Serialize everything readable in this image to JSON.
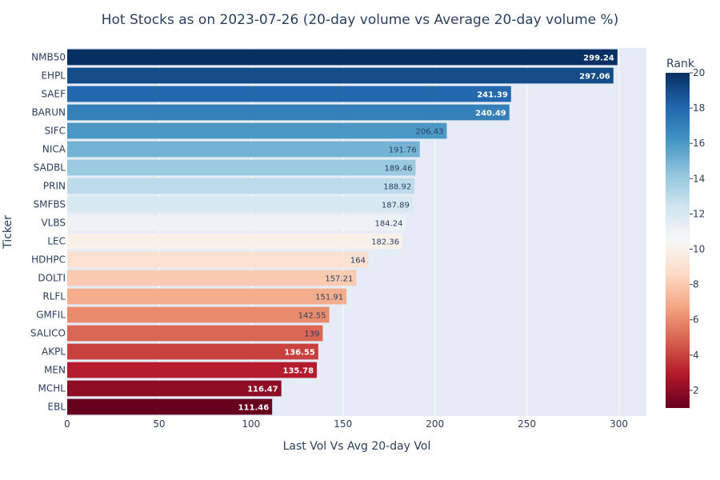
{
  "chart_data": {
    "type": "bar",
    "orientation": "horizontal",
    "title": "Hot Stocks as on 2023-07-26 (20-day volume vs Average 20-day volume %)",
    "xlabel": "Last Vol Vs Avg 20-day Vol",
    "ylabel": "Ticker",
    "xlim": [
      0,
      315
    ],
    "xticks": [
      0,
      50,
      100,
      150,
      200,
      250,
      300
    ],
    "grid": true,
    "categories": [
      "NMB50",
      "EHPL",
      "SAEF",
      "BARUN",
      "SIFC",
      "NICA",
      "SADBL",
      "PRIN",
      "SMFBS",
      "VLBS",
      "LEC",
      "HDHPC",
      "DOLTI",
      "RLFL",
      "GMFIL",
      "SALICO",
      "AKPL",
      "MEN",
      "MCHL",
      "EBL"
    ],
    "values": [
      299.24,
      297.06,
      241.39,
      240.49,
      206.43,
      191.76,
      189.46,
      188.92,
      187.89,
      184.24,
      182.36,
      164,
      157.21,
      151.91,
      142.55,
      139,
      136.55,
      135.78,
      116.47,
      111.46
    ],
    "value_labels": [
      "299.24",
      "297.06",
      "241.39",
      "240.49",
      "206.43",
      "191.76",
      "189.46",
      "188.92",
      "187.89",
      "184.24",
      "182.36",
      "164",
      "157.21",
      "151.91",
      "142.55",
      "139",
      "136.55",
      "135.78",
      "116.47",
      "111.46"
    ],
    "rank": [
      20,
      19,
      18,
      17,
      16,
      15,
      14,
      13,
      12,
      11,
      10,
      9,
      8,
      7,
      6,
      5,
      4,
      3,
      2,
      1
    ],
    "colorbar": {
      "title": "Rank",
      "range": [
        1,
        20
      ],
      "ticks": [
        2,
        4,
        6,
        8,
        10,
        12,
        14,
        16,
        18,
        20
      ],
      "colorscale": "RdBu"
    }
  }
}
